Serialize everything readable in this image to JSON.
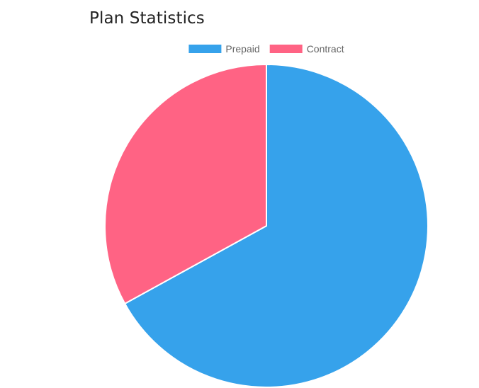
{
  "page": {
    "title": "Plan Statistics"
  },
  "chart_data": {
    "type": "pie",
    "title": "",
    "legend_position": "top",
    "categories": [
      "Prepaid",
      "Contract"
    ],
    "values": [
      67,
      33
    ],
    "colors": [
      "#36A2EB",
      "#FF6384"
    ],
    "border_color": "#ffffff",
    "start_angle": "top (12 o'clock), clockwise"
  }
}
